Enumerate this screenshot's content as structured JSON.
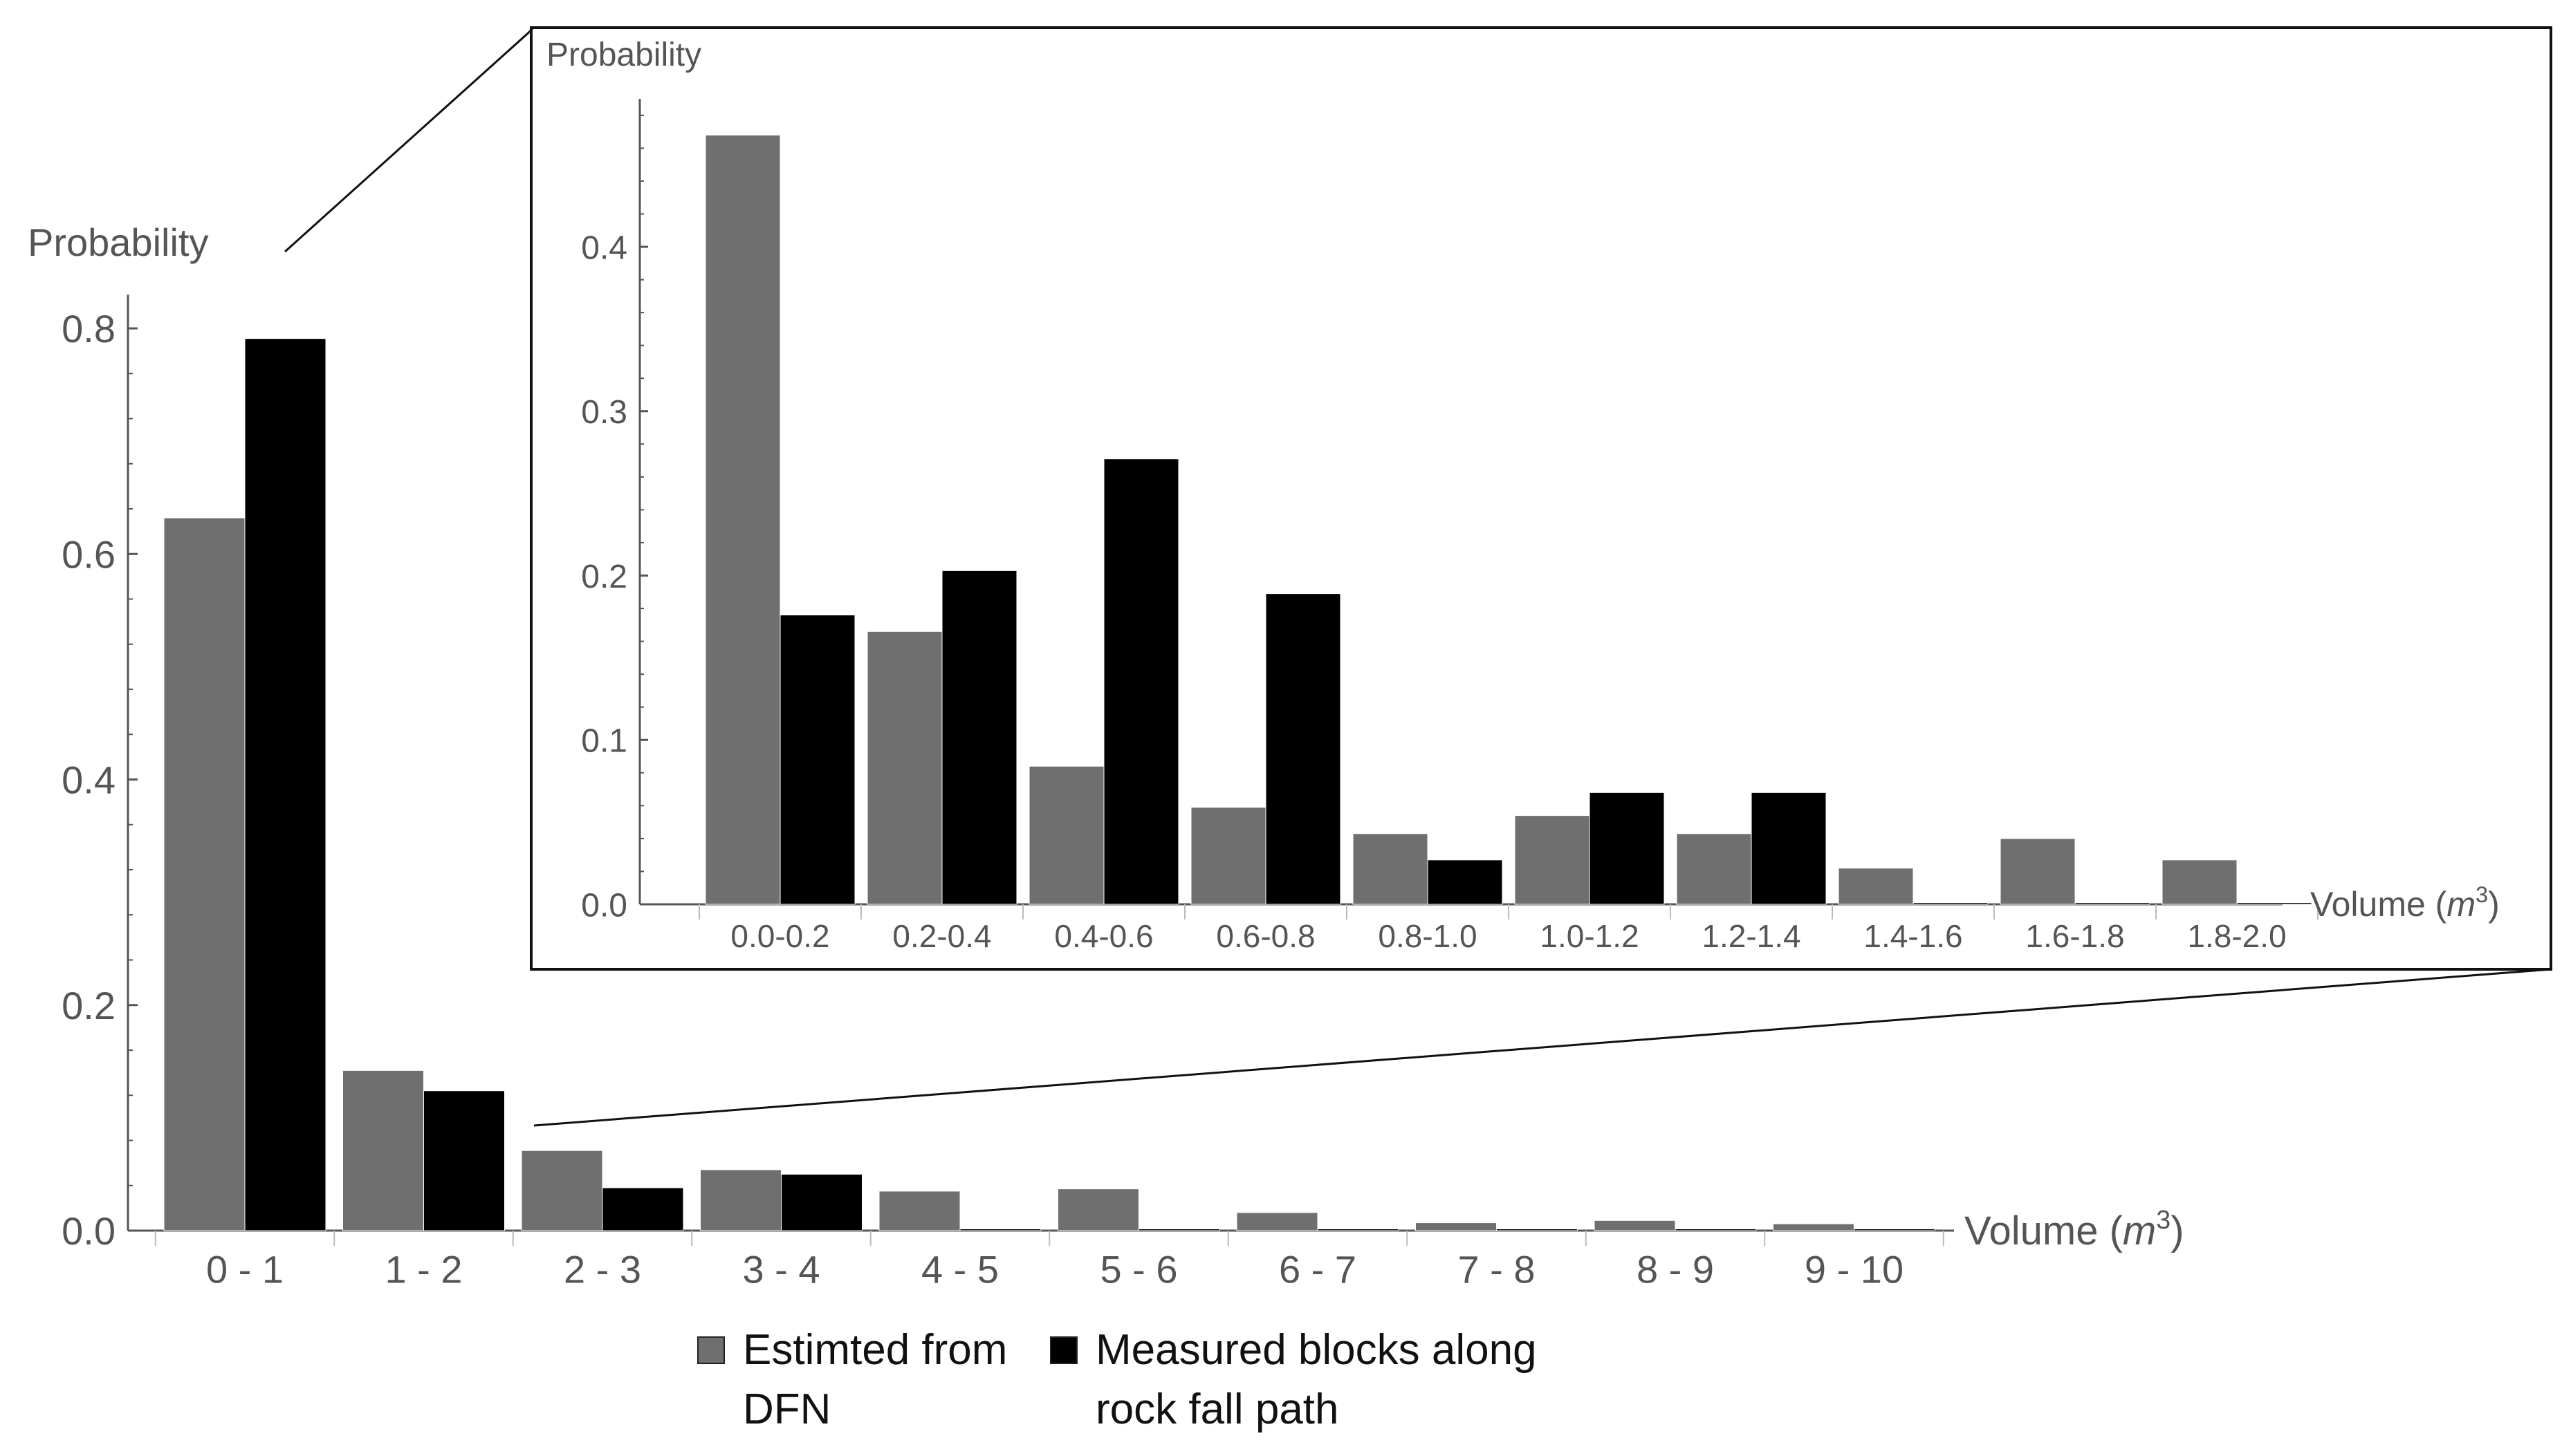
{
  "chart_data": [
    {
      "id": "main",
      "type": "bar",
      "title": "",
      "ylabel": "Probability",
      "xlabel": "Volume (m³)",
      "xlabel_text": "Volume (",
      "xlabel_unit": "m",
      "xlabel_exp": "3",
      "xlabel_close": ")",
      "ylim": [
        0,
        0.83
      ],
      "yticks": [
        0.0,
        0.2,
        0.4,
        0.6,
        0.8
      ],
      "ytick_labels": [
        "0.0",
        "0.2",
        "0.4",
        "0.6",
        "0.8"
      ],
      "categories": [
        "0 - 1",
        "1 - 2",
        "2 - 3",
        "3 - 4",
        "4 - 5",
        "5 - 6",
        "6 - 7",
        "7 - 8",
        "8 - 9",
        "9 - 10"
      ],
      "series": [
        {
          "name": "Estimted from DFN",
          "color": "#6f6f6f",
          "values": [
            0.632,
            0.142,
            0.071,
            0.054,
            0.035,
            0.037,
            0.016,
            0.007,
            0.009,
            0.006
          ]
        },
        {
          "name": "Measured blocks along rock fall path",
          "color": "#000000",
          "values": [
            0.791,
            0.124,
            0.038,
            0.05,
            0.0015,
            0.0015,
            0.0015,
            0.0015,
            0.0015,
            0.0015
          ]
        }
      ]
    },
    {
      "id": "inset",
      "type": "bar",
      "title": "",
      "ylabel": "Probability",
      "xlabel": "Volume (m³)",
      "xlabel_text": "Volume (",
      "xlabel_unit": "m",
      "xlabel_exp": "3",
      "xlabel_close": ")",
      "ylim": [
        0,
        0.49
      ],
      "yticks": [
        0.0,
        0.1,
        0.2,
        0.3,
        0.4
      ],
      "ytick_labels": [
        "0.0",
        "0.1",
        "0.2",
        "0.3",
        "0.4"
      ],
      "categories": [
        "0.0-0.2",
        "0.2-0.4",
        "0.4-0.6",
        "0.6-0.8",
        "0.8-1.0",
        "1.0-1.2",
        "1.2-1.4",
        "1.4-1.6",
        "1.6-1.8",
        "1.8-2.0"
      ],
      "series": [
        {
          "name": "Estimted from DFN",
          "color": "#6f6f6f",
          "values": [
            0.468,
            0.166,
            0.084,
            0.059,
            0.043,
            0.054,
            0.043,
            0.022,
            0.04,
            0.027
          ]
        },
        {
          "name": "Measured blocks along rock fall path",
          "color": "#000000",
          "values": [
            0.176,
            0.203,
            0.271,
            0.189,
            0.027,
            0.068,
            0.068,
            0.001,
            0.001,
            0.001
          ]
        }
      ]
    }
  ],
  "legend": {
    "items": [
      {
        "label": "Estimted from\nDFN",
        "color": "#6f6f6f"
      },
      {
        "label": "Measured blocks along\nrock fall path",
        "color": "#000000"
      }
    ]
  }
}
